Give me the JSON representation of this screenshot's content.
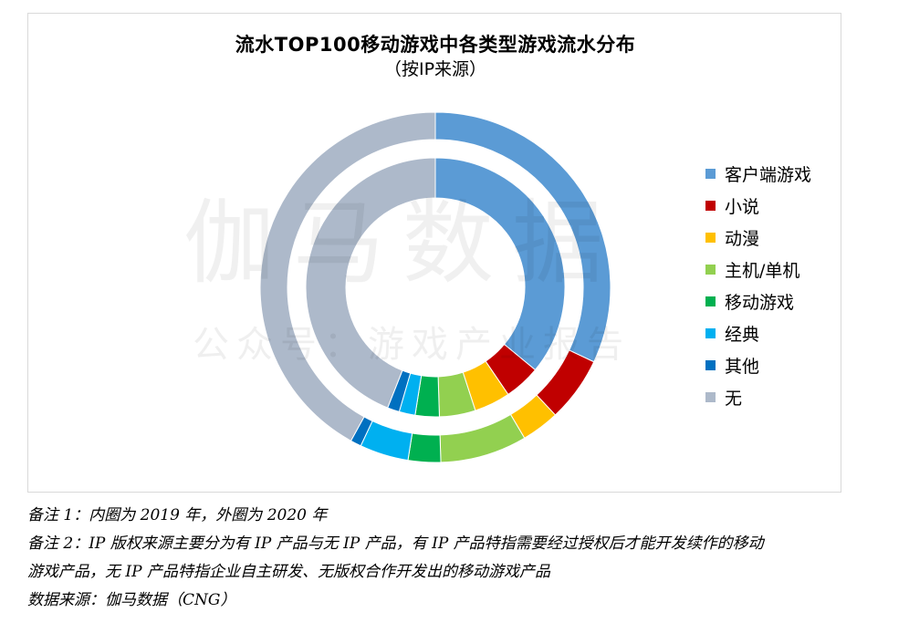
{
  "chart_data": {
    "type": "pie",
    "title": "流水TOP100移动游戏中各类型游戏流水分布",
    "subtitle": "（按IP来源）",
    "categories": [
      "客户端游戏",
      "小说",
      "动漫",
      "主机/单机",
      "移动游戏",
      "经典",
      "其他",
      "无"
    ],
    "colors": [
      "#5b9bd5",
      "#c00000",
      "#ffc000",
      "#92d050",
      "#00b050",
      "#00b0f0",
      "#0070c0",
      "#adb9ca"
    ],
    "series": [
      {
        "name": "2019 年",
        "ring": "inner",
        "values": [
          36.0,
          4.5,
          4.5,
          4.5,
          3.0,
          2.0,
          1.5,
          44.0
        ]
      },
      {
        "name": "2020 年",
        "ring": "outer",
        "values": [
          32.0,
          6.0,
          3.5,
          8.0,
          3.0,
          4.5,
          1.0,
          42.0
        ]
      }
    ],
    "legend_position": "right"
  },
  "watermark": {
    "main": "伽马数据",
    "sub": "公众号：游戏产业报告"
  },
  "notes": [
    "备注 1：内圈为 2019 年，外圈为 2020 年",
    "备注 2：IP 版权来源主要分为有 IP 产品与无 IP 产品，有 IP 产品特指需要经过授权后才能开发续作的移动",
    "游戏产品，无 IP 产品特指企业自主研发、无版权合作开发出的移动游戏产品",
    "数据来源：伽马数据（CNG）"
  ]
}
